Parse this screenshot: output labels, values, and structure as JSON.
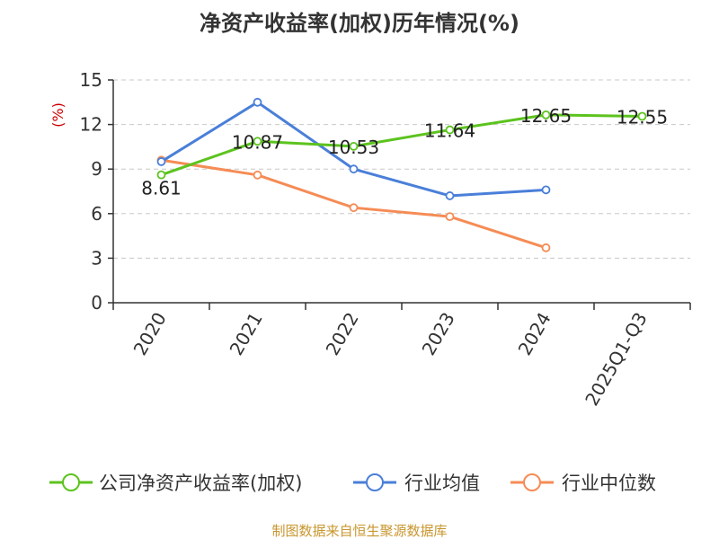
{
  "chart_data": {
    "type": "line",
    "title": "净资产收益率(加权)历年情况(%)",
    "ylabel": "(%)",
    "xlabel": "",
    "ylim": [
      0,
      15
    ],
    "yticks": [
      0,
      3,
      6,
      9,
      12,
      15
    ],
    "grid": "horizontal-dashed",
    "legend": "bottom",
    "categories": [
      "2020",
      "2021",
      "2022",
      "2023",
      "2024",
      "2025Q1-Q3"
    ],
    "series": [
      {
        "name": "公司净资产收益率(加权)",
        "color": "#5cc31e",
        "values": [
          8.61,
          10.87,
          10.53,
          11.64,
          12.65,
          12.55
        ],
        "labels": [
          "8.61",
          "10.87",
          "10.53",
          "11.64",
          "12.65",
          "12.55"
        ]
      },
      {
        "name": "行业均值",
        "color": "#4a7fd9",
        "values": [
          9.5,
          13.5,
          9.0,
          7.2,
          7.6,
          null
        ]
      },
      {
        "name": "行业中位数",
        "color": "#f58c55",
        "values": [
          9.6,
          8.6,
          6.4,
          5.8,
          3.7,
          null
        ]
      }
    ]
  },
  "footer": {
    "source": "制图数据来自恒生聚源数据库"
  }
}
